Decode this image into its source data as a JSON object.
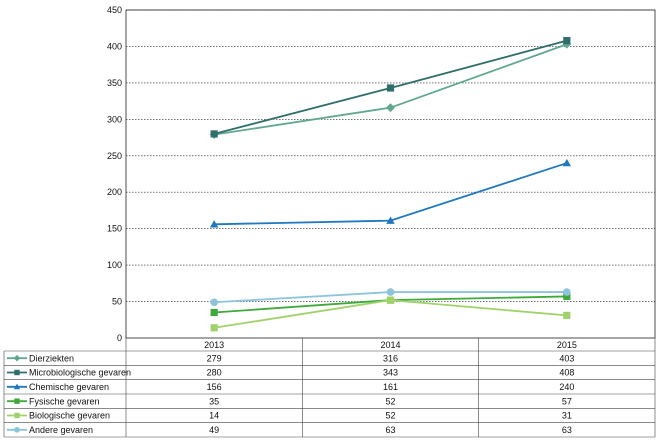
{
  "chart_data": {
    "type": "line",
    "categories": [
      "2013",
      "2014",
      "2015"
    ],
    "ylim": [
      0,
      450
    ],
    "yticks": [
      "0",
      "50",
      "100",
      "150",
      "200",
      "250",
      "300",
      "350",
      "400",
      "450"
    ],
    "grid": true,
    "legend": "data-table-below",
    "series": [
      {
        "name": "Dierziekten",
        "values": [
          279,
          316,
          403
        ],
        "color": "#5fa88f",
        "marker": "diamond"
      },
      {
        "name": "Microbiologische gevaren",
        "values": [
          280,
          343,
          408
        ],
        "color": "#2f6e6a",
        "marker": "square"
      },
      {
        "name": "Chemische gevaren",
        "values": [
          156,
          161,
          240
        ],
        "color": "#1f78c1",
        "marker": "triangle"
      },
      {
        "name": "Fysische gevaren",
        "values": [
          35,
          52,
          57
        ],
        "color": "#3faa3b",
        "marker": "square"
      },
      {
        "name": "Biologische gevaren",
        "values": [
          14,
          52,
          31
        ],
        "color": "#9fd36a",
        "marker": "square"
      },
      {
        "name": "Andere gevaren",
        "values": [
          49,
          63,
          63
        ],
        "color": "#8cc3dd",
        "marker": "circle"
      }
    ]
  }
}
